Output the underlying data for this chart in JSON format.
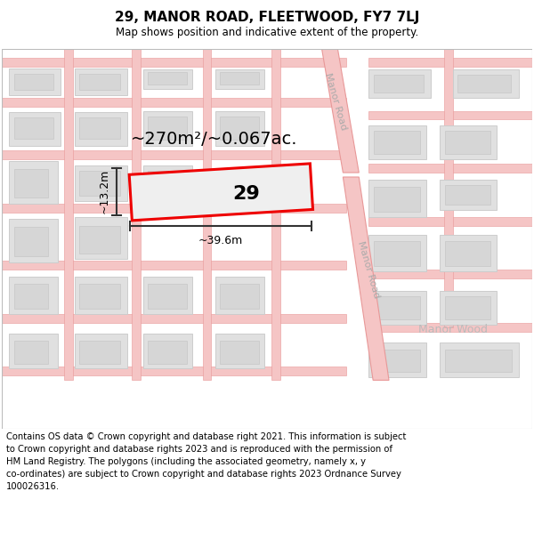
{
  "title": "29, MANOR ROAD, FLEETWOOD, FY7 7LJ",
  "subtitle": "Map shows position and indicative extent of the property.",
  "footer": "Contains OS data © Crown copyright and database right 2021. This information is subject to Crown copyright and database rights 2023 and is reproduced with the permission of\nHM Land Registry. The polygons (including the associated geometry, namely x, y co-ordinates) are subject to Crown copyright and database rights 2023 Ordnance Survey\n100026316.",
  "map_bg": "#f9f9f9",
  "road_fill": "#f5c5c5",
  "road_edge": "#e89898",
  "building_fill": "#e0e0e0",
  "building_edge": "#cccccc",
  "highlight_fill": "#efefef",
  "highlight_stroke": "#ee0000",
  "dim_color": "#333333",
  "label_color": "#aaaaaa",
  "area_text": "~270m²/~0.067ac.",
  "plot_number": "29",
  "dim_width_label": "~39.6m",
  "dim_height_label": "~13.2m",
  "road_label_upper": "Manor Road",
  "road_label_lower": "Manor Road",
  "wood_label": "Manor Wood",
  "title_fontsize": 11,
  "subtitle_fontsize": 8.5,
  "footer_fontsize": 7.2,
  "area_fontsize": 14,
  "plot_num_fontsize": 16,
  "dim_fontsize": 9,
  "road_label_fontsize": 8,
  "wood_label_fontsize": 9
}
